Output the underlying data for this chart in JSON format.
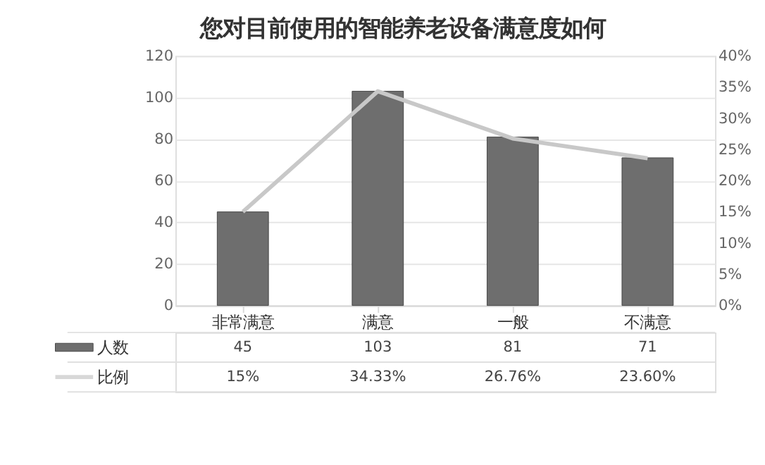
{
  "chart_data": {
    "type": "bar",
    "title": "您对目前使用的智能养老设备满意度如何",
    "categories": [
      "非常满意",
      "满意",
      "一般",
      "不满意"
    ],
    "series": [
      {
        "name": "人数",
        "color": "#6e6e6e",
        "values": [
          45,
          103,
          81,
          71
        ],
        "value_labels": [
          "45",
          "103",
          "81",
          "71"
        ]
      },
      {
        "name": "比例",
        "type": "line",
        "axis": "y2",
        "color": "#c8c8c8",
        "values": [
          15,
          34.33,
          26.76,
          23.6
        ],
        "value_labels": [
          "15%",
          "34.33%",
          "26.76%",
          "23.60%"
        ]
      }
    ],
    "ylim": [
      0,
      120
    ],
    "yticks": [
      0,
      20,
      40,
      60,
      80,
      100,
      120
    ],
    "y2lim": [
      0,
      40
    ],
    "y2ticks": [
      {
        "value": 0,
        "label": "0%"
      },
      {
        "value": 5,
        "label": "5%"
      },
      {
        "value": 10,
        "label": "10%"
      },
      {
        "value": 15,
        "label": "15%"
      },
      {
        "value": 20,
        "label": "20%"
      },
      {
        "value": 25,
        "label": "25%"
      },
      {
        "value": 30,
        "label": "30%"
      },
      {
        "value": 35,
        "label": "35%"
      },
      {
        "value": 40,
        "label": "40%"
      }
    ],
    "grid": "y",
    "legend": "bottom",
    "marker": "none",
    "line_style": "solid"
  }
}
